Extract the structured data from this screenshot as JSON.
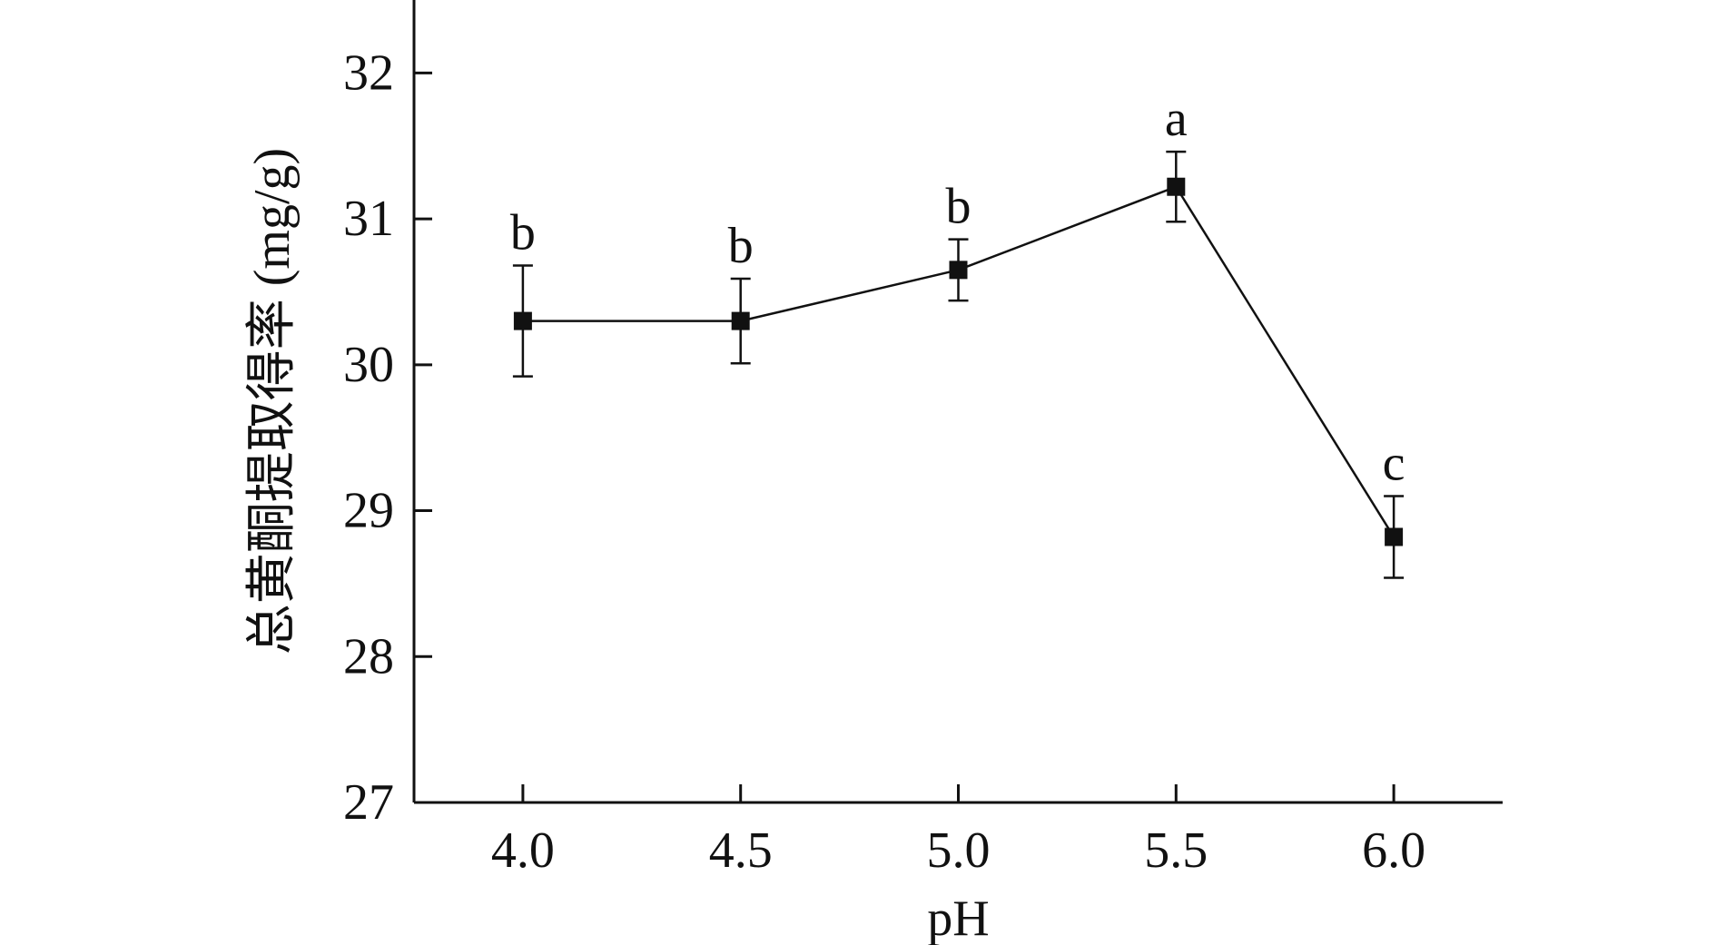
{
  "chart_data": {
    "type": "line",
    "title": "",
    "xlabel": "pH",
    "ylabel": "总黄酮提取得率 (mg/g)",
    "x": [
      4.0,
      4.5,
      5.0,
      5.5,
      6.0
    ],
    "x_tick_labels": [
      "4.0",
      "4.5",
      "5.0",
      "5.5",
      "6.0"
    ],
    "y_ticks": [
      27,
      28,
      29,
      30,
      31,
      32
    ],
    "y_tick_labels": [
      "27",
      "28",
      "29",
      "30",
      "31",
      "32"
    ],
    "xlim": [
      3.75,
      6.25
    ],
    "ylim": [
      27,
      32.5
    ],
    "grid": false,
    "legend": "none",
    "series": [
      {
        "values": [
          30.3,
          30.3,
          30.65,
          31.22,
          28.82
        ],
        "error": [
          0.38,
          0.29,
          0.21,
          0.24,
          0.28
        ],
        "labels": [
          "b",
          "b",
          "b",
          "a",
          "c"
        ],
        "marker": "square",
        "color": "#111111"
      }
    ]
  }
}
